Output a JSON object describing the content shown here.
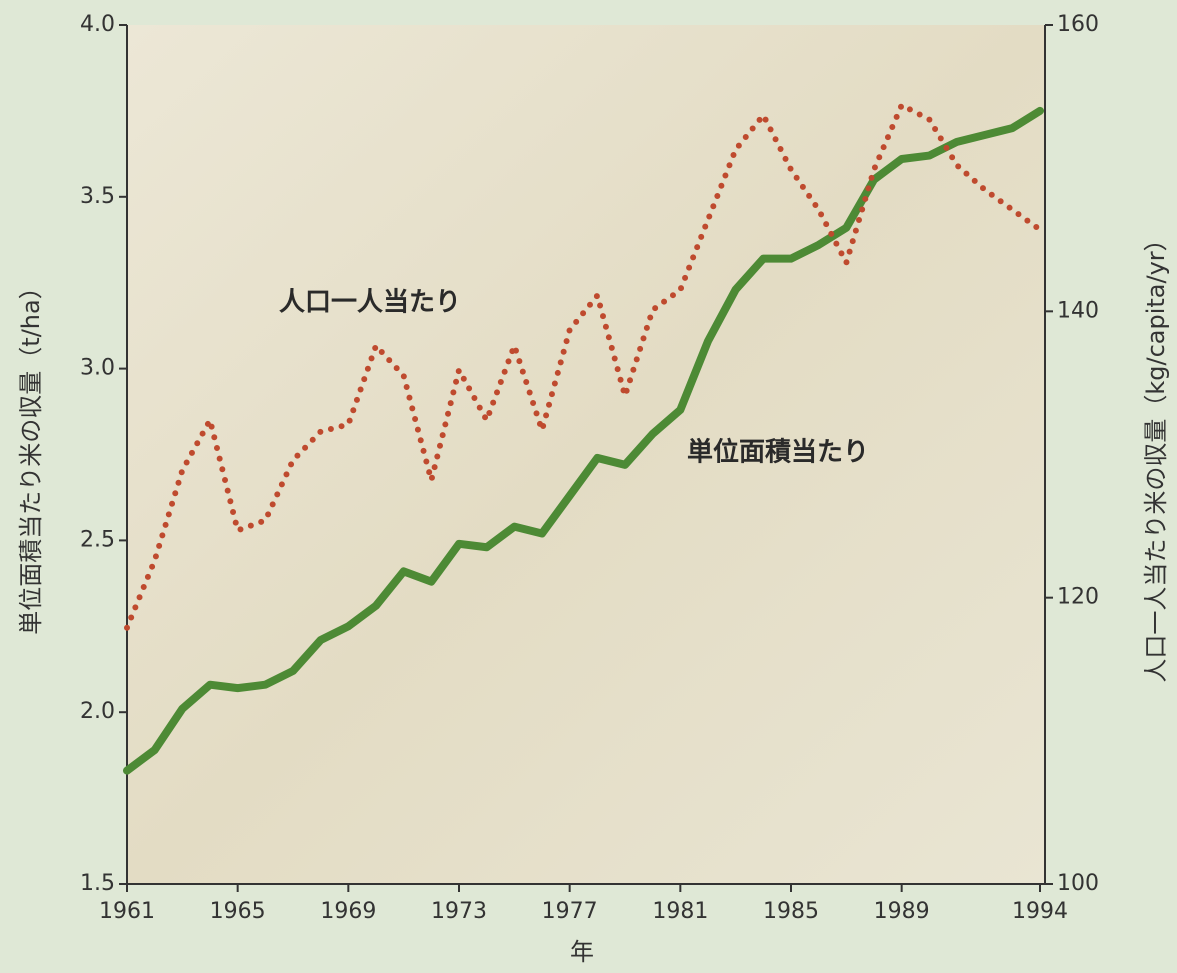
{
  "chart_data": {
    "type": "line",
    "x_label": "年",
    "y_label": "単位面積当たり米の収量（t/ha）",
    "y2_label": "人口一人当たり米の収量（kg/capita/yr）",
    "x": [
      1961,
      1962,
      1963,
      1964,
      1965,
      1966,
      1967,
      1968,
      1969,
      1970,
      1971,
      1972,
      1973,
      1974,
      1975,
      1976,
      1977,
      1978,
      1979,
      1980,
      1981,
      1982,
      1983,
      1984,
      1985,
      1986,
      1987,
      1988,
      1989,
      1990,
      1991,
      1992,
      1993,
      1994
    ],
    "xlim": [
      1961,
      1994
    ],
    "xticks": [
      1961,
      1965,
      1969,
      1973,
      1977,
      1981,
      1985,
      1989,
      1994
    ],
    "ylim": [
      1.5,
      4.0
    ],
    "yticks": [
      1.5,
      {
        "value": 2.0,
        "label": "2.0"
      },
      2.5,
      {
        "value": 3.0,
        "label": "3.0"
      },
      3.5,
      {
        "value": 4.0,
        "label": "4.0"
      }
    ],
    "y2lim": [
      100,
      160
    ],
    "y2ticks": [
      100,
      120,
      140,
      160
    ],
    "series": [
      {
        "name": "単位面積当たり",
        "color": "#4d8a35",
        "style": "solid",
        "values": [
          1.83,
          1.89,
          2.01,
          2.08,
          2.07,
          2.08,
          2.12,
          2.21,
          2.25,
          2.31,
          2.41,
          2.38,
          2.49,
          2.48,
          2.54,
          2.52,
          2.63,
          2.74,
          2.72,
          2.81,
          2.88,
          3.08,
          3.23,
          3.32,
          3.32,
          3.36,
          3.41,
          3.55,
          3.61,
          3.62,
          3.66,
          3.68,
          3.7,
          3.75
        ]
      },
      {
        "name": "人口一人当たり",
        "color": "#bf4a2e",
        "style": "dotted",
        "axis": "y2",
        "values": [
          117.9,
          122.6,
          128.9,
          132.4,
          124.7,
          125.4,
          129.6,
          131.6,
          132.1,
          137.6,
          135.5,
          128.2,
          135.9,
          132.4,
          137.6,
          131.7,
          138.7,
          141.1,
          134.1,
          140.1,
          141.5,
          146.4,
          151.3,
          153.7,
          149.9,
          147.1,
          143.4,
          149.9,
          154.4,
          153.4,
          150.2,
          148.5,
          147.1,
          145.7
        ]
      }
    ]
  }
}
